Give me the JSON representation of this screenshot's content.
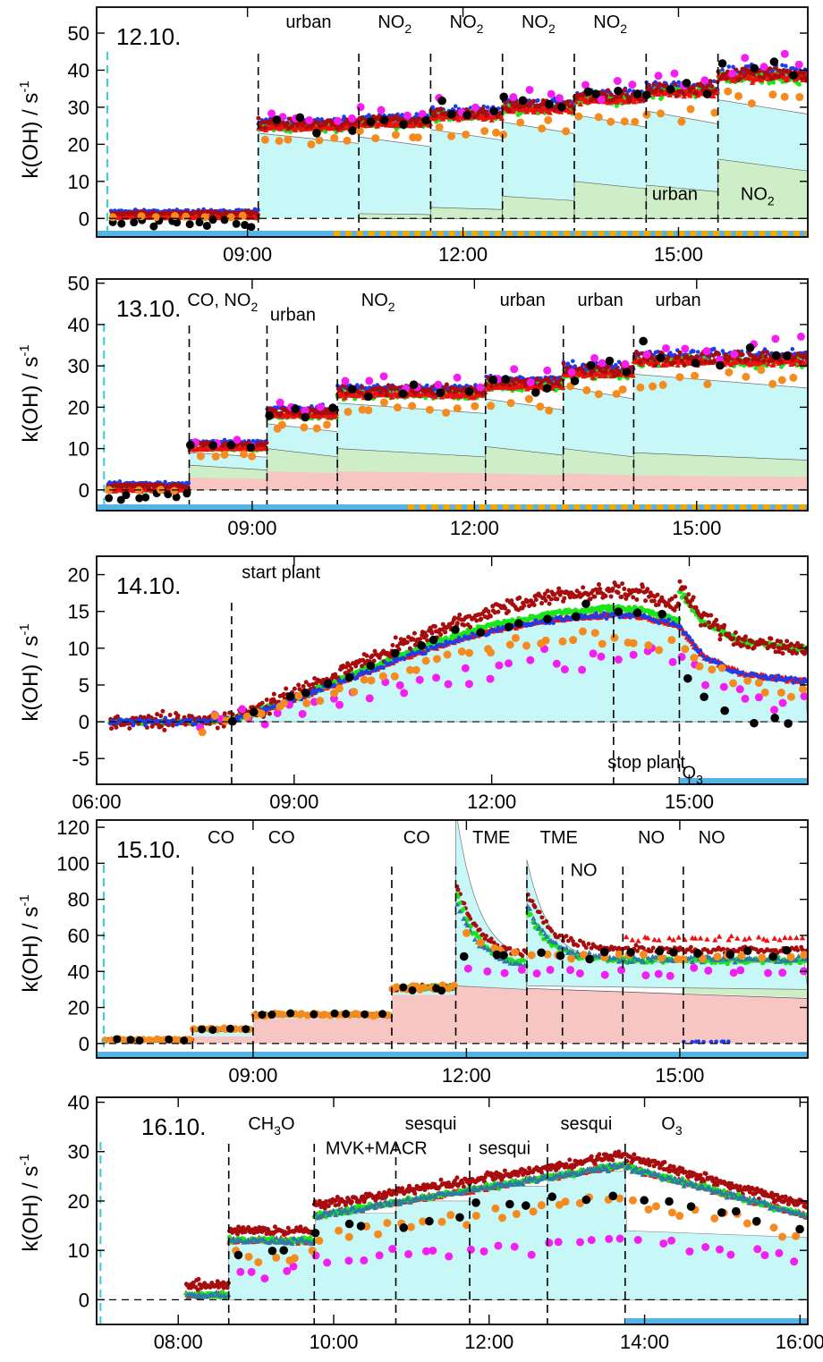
{
  "colors": {
    "cyan_fill": "#c8f7f8",
    "green_fill": "#cdeec6",
    "red_fill": "#f8c6c2",
    "black": "#000000",
    "blue": "#1d3cf0",
    "red": "#ee1010",
    "darkred": "#a80c0c",
    "green": "#19e619",
    "magenta": "#f51ef0",
    "orange": "#f58a1e",
    "steel": "#2d7aa8",
    "sky_bar": "#55b3e6",
    "orange_bar": "#f5a800",
    "dash_cyan": "#2fd0dc"
  },
  "ylabel": "k(OH) / s",
  "ylabel_sup": "-1",
  "chart_data": [
    {
      "type": "scatter",
      "date": "12.10.",
      "xlim": [
        6.9,
        16.8
      ],
      "ylim": [
        -5,
        57
      ],
      "yticks": [
        0,
        10,
        20,
        30,
        40,
        50
      ],
      "xticks": [
        {
          "v": 9,
          "label": "09:00"
        },
        {
          "v": 12,
          "label": "12:00"
        },
        {
          "v": 15,
          "label": "15:00"
        }
      ],
      "event_lines": [
        9.15,
        10.55,
        11.55,
        12.55,
        13.55,
        14.55,
        15.55
      ],
      "event_labels": [
        {
          "t": 9.85,
          "y": 51.5,
          "text": "urban"
        },
        {
          "t": 11.05,
          "y": 51.5,
          "text": "NO",
          "sub": "2"
        },
        {
          "t": 12.05,
          "y": 51.5,
          "text": "NO",
          "sub": "2"
        },
        {
          "t": 13.05,
          "y": 51.5,
          "text": "NO",
          "sub": "2"
        },
        {
          "t": 14.05,
          "y": 51.5,
          "text": "NO",
          "sub": "2"
        },
        {
          "t": 14.95,
          "y": 5.0,
          "text": "urban"
        },
        {
          "t": 16.1,
          "y": 5.0,
          "text": "NO",
          "sub": "2"
        }
      ],
      "start_line": 7.05,
      "blue_bar": [
        6.9,
        16.8
      ],
      "orange_dashes": [
        10.2,
        16.8
      ],
      "segments": [
        {
          "t0": 7.1,
          "t1": 9.15,
          "cyan": 0.5,
          "green": 0,
          "red": 0,
          "pts": 0.4
        },
        {
          "t0": 9.15,
          "t1": 10.55,
          "cyan": 23,
          "green": 0,
          "red": 0,
          "pts": 24.5
        },
        {
          "t0": 10.55,
          "t1": 11.55,
          "cyan": 22,
          "green": 1.3,
          "red": 0,
          "pts": 25.5
        },
        {
          "t0": 11.55,
          "t1": 12.55,
          "cyan": 24,
          "green": 3,
          "red": 0,
          "pts": 27.5
        },
        {
          "t0": 12.55,
          "t1": 13.55,
          "cyan": 26,
          "green": 6,
          "red": 0,
          "pts": 29.5
        },
        {
          "t0": 13.55,
          "t1": 14.55,
          "cyan": 28,
          "green": 10,
          "red": 0,
          "pts": 32
        },
        {
          "t0": 14.55,
          "t1": 15.55,
          "cyan": 29,
          "green": 9,
          "red": 0,
          "pts": 34
        },
        {
          "t0": 15.55,
          "t1": 16.8,
          "cyan": 32,
          "green": 16,
          "red": 0,
          "pts": 38
        }
      ]
    },
    {
      "type": "scatter",
      "date": "13.10.",
      "xlim": [
        6.9,
        16.5
      ],
      "ylim": [
        -5,
        51
      ],
      "yticks": [
        0,
        10,
        20,
        30,
        40,
        50
      ],
      "xticks": [
        {
          "v": 9,
          "label": "09:00"
        },
        {
          "v": 12,
          "label": "12:00"
        },
        {
          "v": 15,
          "label": "15:00"
        }
      ],
      "event_lines": [
        8.15,
        9.2,
        10.15,
        12.15,
        13.2,
        14.15
      ],
      "event_labels": [
        {
          "t": 8.6,
          "y": 44.5,
          "text": "CO, NO",
          "sub": "2"
        },
        {
          "t": 9.55,
          "y": 41.0,
          "text": "urban"
        },
        {
          "t": 10.7,
          "y": 44.5,
          "text": "NO",
          "sub": "2"
        },
        {
          "t": 12.65,
          "y": 44.5,
          "text": "urban"
        },
        {
          "t": 13.7,
          "y": 44.5,
          "text": "urban"
        },
        {
          "t": 14.75,
          "y": 44.5,
          "text": "urban"
        }
      ],
      "start_line": 7.0,
      "blue_bar": [
        6.9,
        16.5
      ],
      "orange_dashes": [
        11.1,
        16.5
      ],
      "segments": [
        {
          "t0": 7.05,
          "t1": 8.15,
          "cyan": 0.3,
          "green": 0,
          "red": 0,
          "pts": 0
        },
        {
          "t0": 8.15,
          "t1": 9.2,
          "cyan": 9,
          "green": 3.0,
          "red": 3.0,
          "pts": 10
        },
        {
          "t0": 9.2,
          "t1": 10.15,
          "cyan": 16,
          "green": 5.5,
          "red": 4.5,
          "pts": 18
        },
        {
          "t0": 10.15,
          "t1": 12.15,
          "cyan": 21,
          "green": 5.5,
          "red": 4.5,
          "pts": 23
        },
        {
          "t0": 12.15,
          "t1": 13.2,
          "cyan": 22,
          "green": 6.5,
          "red": 4.0,
          "pts": 25
        },
        {
          "t0": 13.2,
          "t1": 14.15,
          "cyan": 25,
          "green": 6,
          "red": 4.0,
          "pts": 28
        },
        {
          "t0": 14.15,
          "t1": 16.5,
          "cyan": 28,
          "green": 5.5,
          "red": 3.5,
          "pts": 31
        }
      ]
    },
    {
      "type": "scatter",
      "date": "14.10.",
      "xlim": [
        6.0,
        16.8
      ],
      "ylim": [
        -8.5,
        22.5
      ],
      "yticks": [
        -5,
        0,
        5,
        10,
        15,
        20
      ],
      "xticks": [
        {
          "v": 6,
          "label": "06:00"
        },
        {
          "v": 9,
          "label": "09:00"
        },
        {
          "v": 12,
          "label": "12:00"
        },
        {
          "v": 15,
          "label": "15:00"
        }
      ],
      "event_lines": [
        8.05,
        13.85,
        14.85
      ],
      "event_labels": [
        {
          "t": 8.8,
          "y": 19.5,
          "text": "start plant"
        },
        {
          "t": 14.35,
          "y": -6.3,
          "text": "stop plant"
        },
        {
          "t": 15.05,
          "y": -7.7,
          "text": "O",
          "sub": "3"
        }
      ],
      "start_line": 6.0,
      "blue_bar": [
        14.85,
        16.8
      ],
      "orange_dashes": null,
      "curve": [
        [
          6.2,
          0
        ],
        [
          7.5,
          0
        ],
        [
          8.1,
          0.4
        ],
        [
          9,
          3
        ],
        [
          10,
          6.5
        ],
        [
          11,
          9.8
        ],
        [
          12,
          12.4
        ],
        [
          13,
          14
        ],
        [
          13.85,
          14.6
        ],
        [
          14.3,
          14.3
        ],
        [
          14.85,
          13
        ],
        [
          15.2,
          9
        ],
        [
          15.8,
          6.5
        ],
        [
          16.8,
          5.5
        ]
      ]
    },
    {
      "type": "scatter",
      "date": "15.10.",
      "xlim": [
        6.8,
        16.8
      ],
      "ylim": [
        -8,
        124
      ],
      "yticks": [
        0,
        20,
        40,
        60,
        80,
        100,
        120
      ],
      "xticks": [
        {
          "v": 9,
          "label": "09:00"
        },
        {
          "v": 12,
          "label": "12:00"
        },
        {
          "v": 15,
          "label": "15:00"
        }
      ],
      "event_lines": [
        8.15,
        9.0,
        10.95,
        11.85,
        12.85,
        13.35,
        14.2,
        15.05
      ],
      "event_labels": [
        {
          "t": 8.55,
          "y": 111,
          "text": "CO"
        },
        {
          "t": 9.4,
          "y": 111,
          "text": "CO"
        },
        {
          "t": 11.3,
          "y": 111,
          "text": "CO"
        },
        {
          "t": 12.35,
          "y": 111,
          "text": "TME"
        },
        {
          "t": 13.3,
          "y": 111,
          "text": "TME"
        },
        {
          "t": 13.65,
          "y": 93,
          "text": "NO"
        },
        {
          "t": 14.6,
          "y": 111,
          "text": "NO"
        },
        {
          "t": 15.45,
          "y": 111,
          "text": "NO"
        }
      ],
      "start_line": 6.9,
      "blue_bar": [
        6.8,
        16.8
      ],
      "orange_dashes": null
    },
    {
      "type": "scatter",
      "date": "16.10.",
      "xlim": [
        6.95,
        16.1
      ],
      "ylim": [
        -5,
        41
      ],
      "yticks": [
        0,
        10,
        20,
        30,
        40
      ],
      "xticks": [
        {
          "v": 8,
          "label": "08:00"
        },
        {
          "v": 10,
          "label": "10:00"
        },
        {
          "v": 12,
          "label": "12:00"
        },
        {
          "v": 14,
          "label": "14:00"
        },
        {
          "v": 16,
          "label": "16:00"
        }
      ],
      "event_lines": [
        8.65,
        9.75,
        10.8,
        11.75,
        12.75,
        13.75
      ],
      "event_labels": [
        {
          "t": 9.2,
          "y": 34.5,
          "text": "CH",
          "sub": "3",
          "tail": "CHO"
        },
        {
          "t": 10.55,
          "y": 29.5,
          "text": "MVK+MACR"
        },
        {
          "t": 11.25,
          "y": 34.5,
          "text": "sesqui"
        },
        {
          "t": 12.2,
          "y": 29.5,
          "text": "sesqui"
        },
        {
          "t": 13.25,
          "y": 34.5,
          "text": "sesqui"
        },
        {
          "t": 14.35,
          "y": 34.5,
          "text": "O",
          "sub": "3"
        }
      ],
      "start_line": 7.0,
      "blue_bar": [
        13.75,
        16.1
      ],
      "orange_dashes": null
    }
  ]
}
